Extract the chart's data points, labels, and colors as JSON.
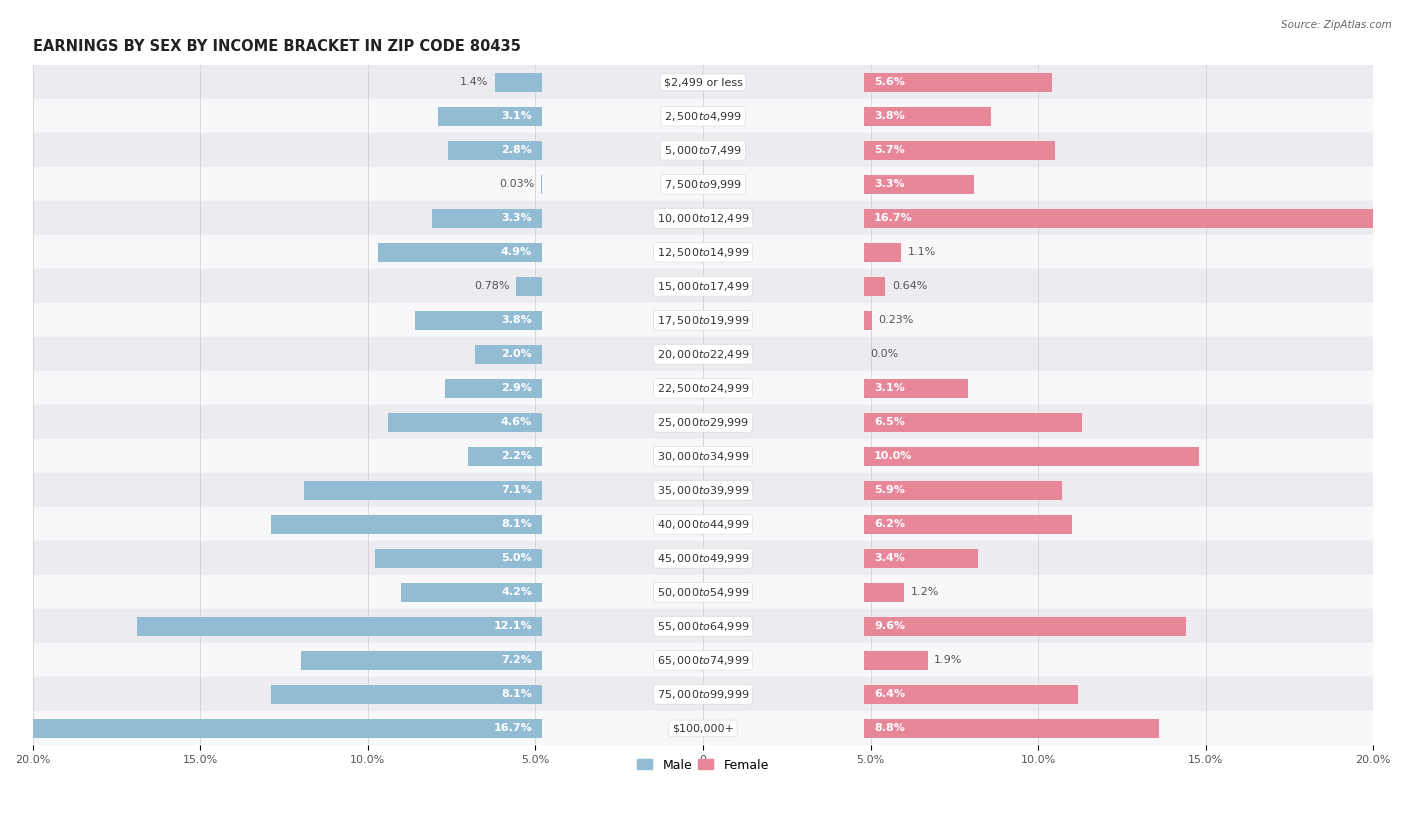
{
  "title": "EARNINGS BY SEX BY INCOME BRACKET IN ZIP CODE 80435",
  "source": "Source: ZipAtlas.com",
  "categories": [
    "$2,499 or less",
    "$2,500 to $4,999",
    "$5,000 to $7,499",
    "$7,500 to $9,999",
    "$10,000 to $12,499",
    "$12,500 to $14,999",
    "$15,000 to $17,499",
    "$17,500 to $19,999",
    "$20,000 to $22,499",
    "$22,500 to $24,999",
    "$25,000 to $29,999",
    "$30,000 to $34,999",
    "$35,000 to $39,999",
    "$40,000 to $44,999",
    "$45,000 to $49,999",
    "$50,000 to $54,999",
    "$55,000 to $64,999",
    "$65,000 to $74,999",
    "$75,000 to $99,999",
    "$100,000+"
  ],
  "male_values": [
    1.4,
    3.1,
    2.8,
    0.03,
    3.3,
    4.9,
    0.78,
    3.8,
    2.0,
    2.9,
    4.6,
    2.2,
    7.1,
    8.1,
    5.0,
    4.2,
    12.1,
    7.2,
    8.1,
    16.7
  ],
  "female_values": [
    5.6,
    3.8,
    5.7,
    3.3,
    16.7,
    1.1,
    0.64,
    0.23,
    0.0,
    3.1,
    6.5,
    10.0,
    5.9,
    6.2,
    3.4,
    1.2,
    9.6,
    1.9,
    6.4,
    8.8
  ],
  "male_color": "#92bcd4",
  "female_color": "#e8879a",
  "male_label_color": "#555555",
  "female_label_color": "#555555",
  "male_text_inside_color": "#ffffff",
  "female_text_inside_color": "#ffffff",
  "bg_color": "#ffffff",
  "row_alt_color": "#ebebf0",
  "row_base_color": "#f8f8fb",
  "xmin": -20.0,
  "xmax": 20.0,
  "bar_height": 0.55,
  "title_fontsize": 10.5,
  "label_fontsize": 8.0,
  "tick_fontsize": 8.0,
  "source_fontsize": 7.5,
  "category_fontsize": 8.0,
  "inside_label_threshold": 2.0
}
